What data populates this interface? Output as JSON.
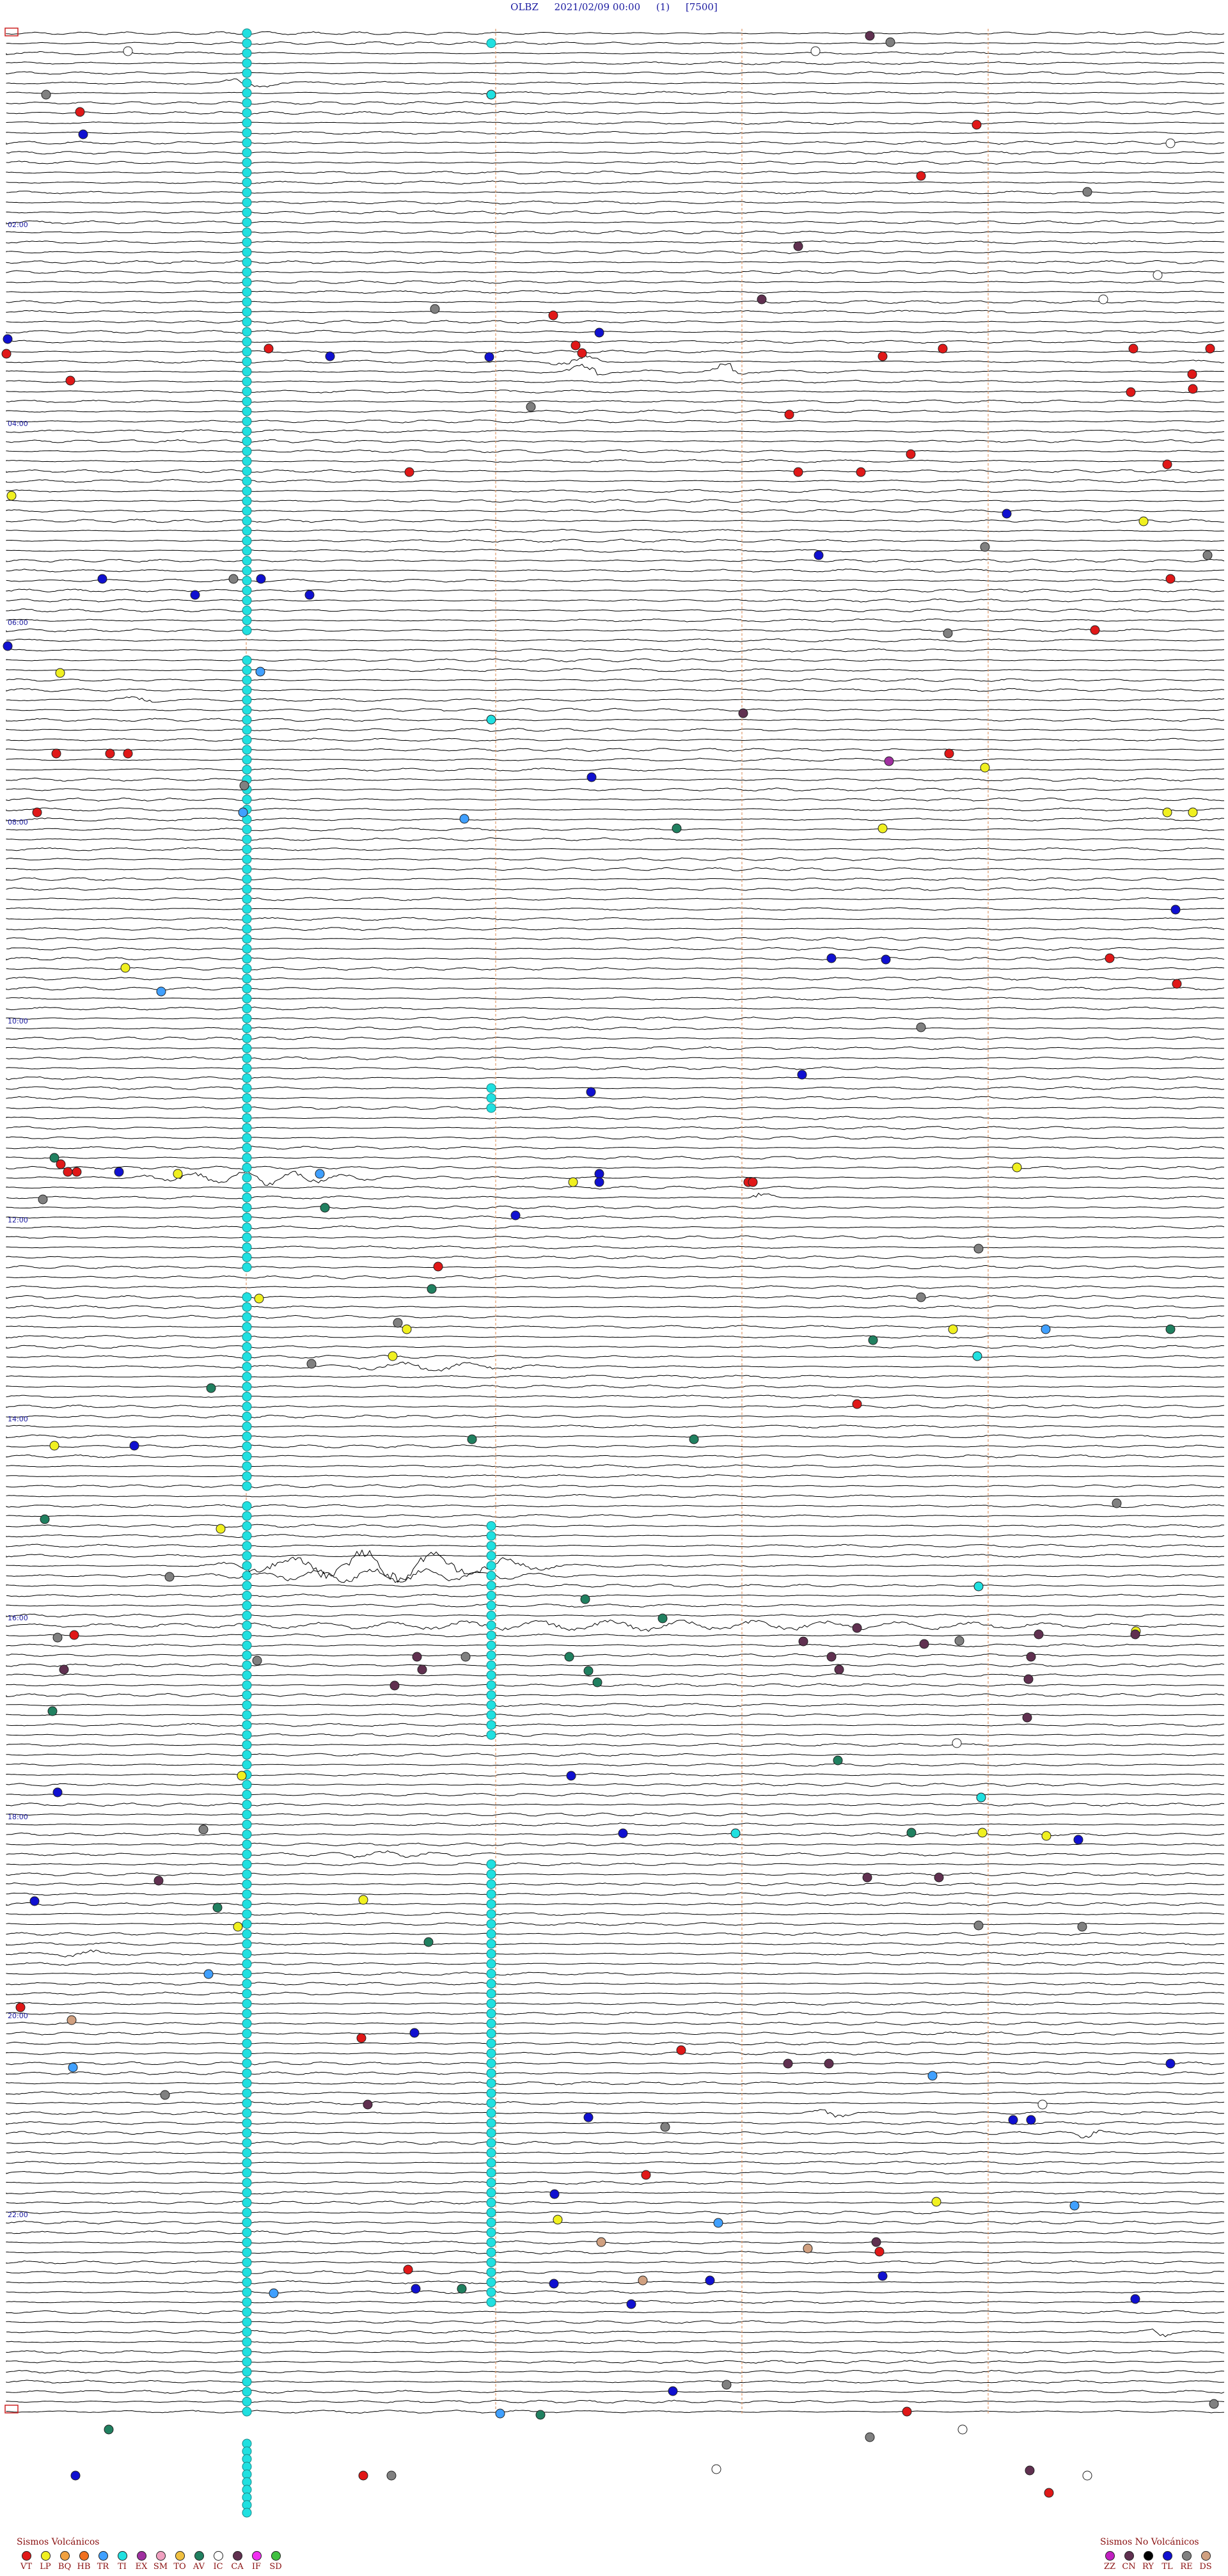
{
  "header": {
    "station": "OLBZ",
    "datetime": "2021/02/09 00:00",
    "page": "(1)",
    "scale": "[7500]"
  },
  "trace_color": "#000000",
  "minute_line_color": "#e09a6a",
  "time_labels": [
    "02:00",
    "04:00",
    "06:00",
    "08:00",
    "10:00",
    "12:00",
    "14:00",
    "16:00",
    "18:00",
    "20:00",
    "22:00"
  ],
  "legend_volcanic": {
    "title": "Sismos Volcánicos",
    "items": [
      {
        "code": "VT",
        "color": "#e01818"
      },
      {
        "code": "LP",
        "color": "#f0f020"
      },
      {
        "code": "BQ",
        "color": "#f0a040"
      },
      {
        "code": "HB",
        "color": "#f07020"
      },
      {
        "code": "TR",
        "color": "#40a0ff"
      },
      {
        "code": "TI",
        "color": "#20e0e0"
      },
      {
        "code": "EX",
        "color": "#a030a0"
      },
      {
        "code": "SM",
        "color": "#f0a0c0"
      },
      {
        "code": "TO",
        "color": "#f0c040"
      },
      {
        "code": "AV",
        "color": "#208060"
      },
      {
        "code": "IC",
        "color": "#ffffff"
      },
      {
        "code": "CA",
        "color": "#603050"
      },
      {
        "code": "IF",
        "color": "#f030f0"
      },
      {
        "code": "SD",
        "color": "#40c040"
      }
    ]
  },
  "legend_nonvolcanic": {
    "title": "Sismos No Volcánicos",
    "items": [
      {
        "code": "ZZ",
        "color": "#c020c0"
      },
      {
        "code": "CN",
        "color": "#603050"
      },
      {
        "code": "RY",
        "color": "#000000"
      },
      {
        "code": "TL",
        "color": "#1010d0"
      },
      {
        "code": "RE",
        "color": "#808080"
      },
      {
        "code": "DS",
        "color": "#d0a080"
      }
    ]
  }
}
